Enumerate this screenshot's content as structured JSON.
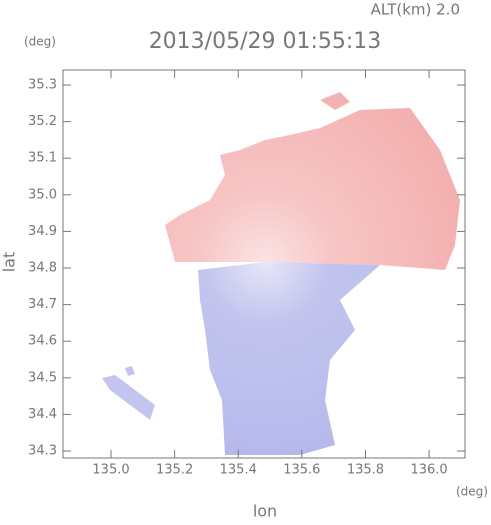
{
  "chart_data": {
    "type": "map",
    "title": "2013/05/29 01:55:13",
    "subtitle": "ALT(km) 2.0",
    "x_label": "lon",
    "y_label": "lat",
    "x_unit": "(deg)",
    "y_unit": "(deg)",
    "xlim": [
      134.849,
      136.113
    ],
    "ylim": [
      34.281,
      35.341
    ],
    "xticks": [
      {
        "value": 135,
        "label": "135.0"
      },
      135.2,
      135.4,
      135.6,
      135.8,
      {
        "value": 136,
        "label": "136.0"
      }
    ],
    "yticks": [
      34.3,
      34.4,
      34.5,
      34.6,
      34.7,
      34.8,
      34.9,
      {
        "value": 35,
        "label": "35.0"
      },
      35.1,
      35.2,
      35.3
    ]
  }
}
